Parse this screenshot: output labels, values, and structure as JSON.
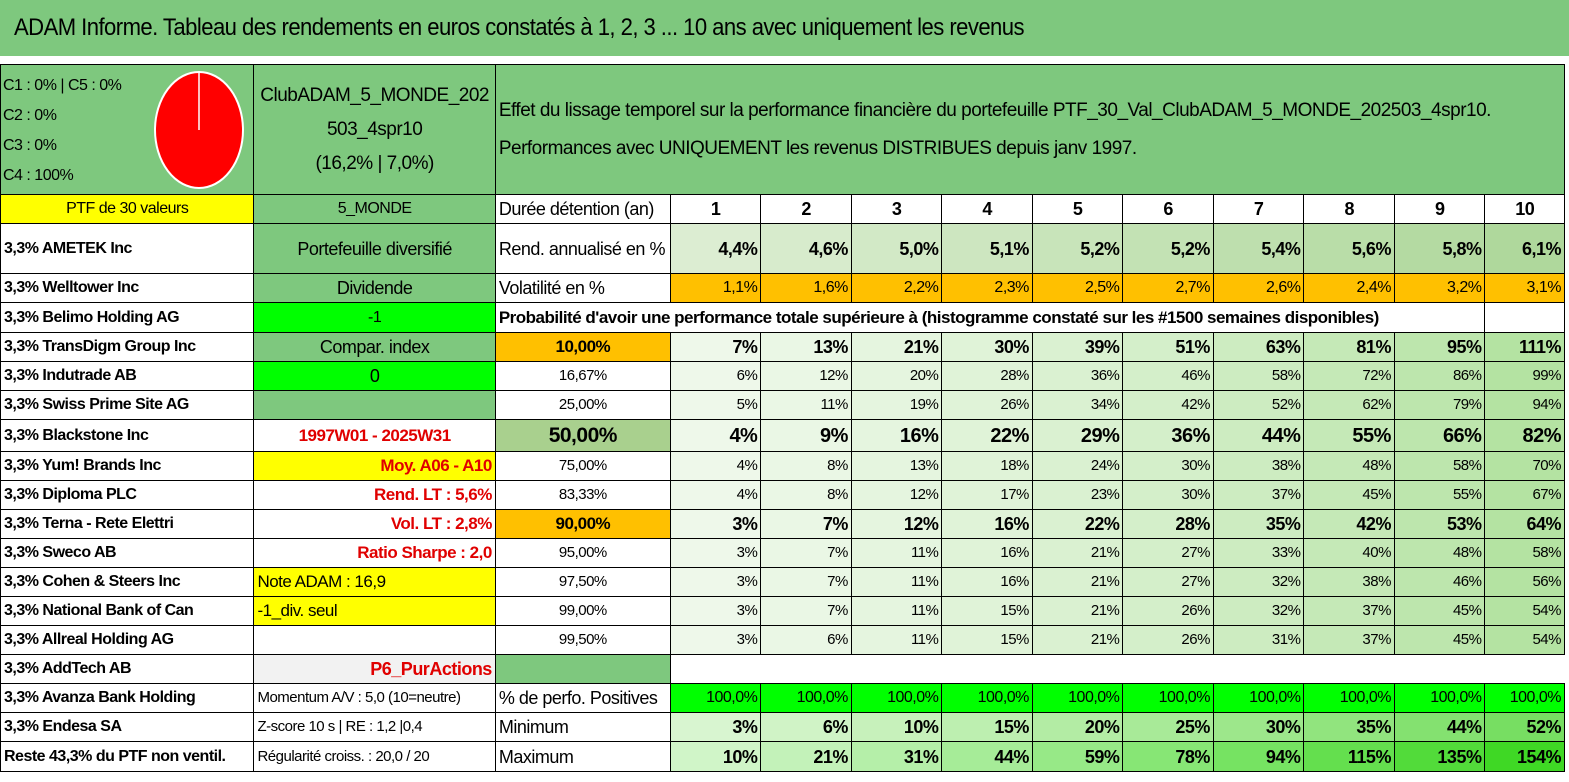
{
  "title": "ADAM Informe. Tableau des rendements en euros constatés à 1, 2, 3 ... 10 ans avec uniquement les revenus",
  "pie": {
    "lines": [
      "C1 : 0% | C5 : 0%",
      "C2 : 0%",
      "C3 : 0%",
      "C4 : 100%"
    ],
    "color": "#ff0000",
    "values": {
      "C1": 0,
      "C2": 0,
      "C3": 0,
      "C4": 100,
      "C5": 0
    }
  },
  "portfolio_name": [
    "ClubADAM_5_MONDE_202",
    "503_4spr10",
    "(16,2% | 7,0%)"
  ],
  "description": [
    "Effet du lissage temporel sur la performance financière du portefeuille PTF_30_Val_ClubADAM_5_MONDE_202503_4spr10.",
    "Performances avec UNIQUEMENT les revenus DISTRIBUES depuis janv 1997."
  ],
  "ptf_header": "PTF de 30 valeurs",
  "ptf_code": "5_MONDE",
  "holdings": [
    "3,3% AMETEK Inc",
    "3,3% Welltower Inc",
    "3,3% Belimo Holding AG",
    "3,3% TransDigm Group Inc",
    "3,3% Indutrade AB",
    "3,3% Swiss Prime Site AG",
    "3,3% Blackstone Inc",
    "3,3% Yum! Brands Inc",
    "3,3% Diploma PLC",
    "3,3% Terna - Rete Elettri",
    "3,3% Sweco AB",
    "3,3% Cohen & Steers Inc",
    "3,3% National Bank of Can",
    "3,3% Allreal Holding AG",
    "3,3% AddTech AB",
    "3,3% Avanza Bank Holding",
    "3,3% Endesa SA",
    "Reste 43,3% du PTF non ventil."
  ],
  "info": {
    "diversified": "Portefeuille diversifié",
    "dividend": "Dividende",
    "dividend_value": "-1",
    "compar_index": "Compar. index",
    "compar_value": "0",
    "period": "1997W01 - 2025W31",
    "moy": "Moy. A06 - A10",
    "rend_lt": "Rend. LT : 5,6%",
    "vol_lt": "Vol. LT : 2,8%",
    "sharpe": "Ratio Sharpe : 2,0",
    "note": "Note ADAM : 16,9",
    "div_seul": "-1_div. seul",
    "p6": "P6_PurActions",
    "momentum": "Momentum A/V : 5,0 (10=neutre)",
    "zscore": "Z-score 10 s | RE : 1,2 |0,4",
    "regularite": "Régularité croiss. : 20,0 / 20"
  },
  "labels": {
    "duree": "Durée détention (an)",
    "rend": "Rend. annualisé en %",
    "vol": "Volatilité en %",
    "proba": "Probabilité d'avoir une performance totale supérieure à (histogramme constaté sur les #1500 semaines disponibles)",
    "positives": "% de perfo. Positives",
    "minimum": "Minimum",
    "maximum": "Maximum"
  },
  "years": [
    "1",
    "2",
    "3",
    "4",
    "5",
    "6",
    "7",
    "8",
    "9",
    "10"
  ],
  "rend": [
    "4,4%",
    "4,6%",
    "5,0%",
    "5,1%",
    "5,2%",
    "5,2%",
    "5,4%",
    "5,6%",
    "5,8%",
    "6,1%"
  ],
  "vol": [
    "1,1%",
    "1,6%",
    "2,2%",
    "2,3%",
    "2,5%",
    "2,7%",
    "2,6%",
    "2,4%",
    "3,2%",
    "3,1%"
  ],
  "prob_rows": [
    {
      "p": "10,00%",
      "v": [
        "7%",
        "13%",
        "21%",
        "30%",
        "39%",
        "51%",
        "63%",
        "81%",
        "95%",
        "111%"
      ]
    },
    {
      "p": "16,67%",
      "v": [
        "6%",
        "12%",
        "20%",
        "28%",
        "36%",
        "46%",
        "58%",
        "72%",
        "86%",
        "99%"
      ]
    },
    {
      "p": "25,00%",
      "v": [
        "5%",
        "11%",
        "19%",
        "26%",
        "34%",
        "42%",
        "52%",
        "62%",
        "79%",
        "94%"
      ]
    },
    {
      "p": "50,00%",
      "v": [
        "4%",
        "9%",
        "16%",
        "22%",
        "29%",
        "36%",
        "44%",
        "55%",
        "66%",
        "82%"
      ]
    },
    {
      "p": "75,00%",
      "v": [
        "4%",
        "8%",
        "13%",
        "18%",
        "24%",
        "30%",
        "38%",
        "48%",
        "58%",
        "70%"
      ]
    },
    {
      "p": "83,33%",
      "v": [
        "4%",
        "8%",
        "12%",
        "17%",
        "23%",
        "30%",
        "37%",
        "45%",
        "55%",
        "67%"
      ]
    },
    {
      "p": "90,00%",
      "v": [
        "3%",
        "7%",
        "12%",
        "16%",
        "22%",
        "28%",
        "35%",
        "42%",
        "53%",
        "64%"
      ]
    },
    {
      "p": "95,00%",
      "v": [
        "3%",
        "7%",
        "11%",
        "16%",
        "21%",
        "27%",
        "33%",
        "40%",
        "48%",
        "58%"
      ]
    },
    {
      "p": "97,50%",
      "v": [
        "3%",
        "7%",
        "11%",
        "16%",
        "21%",
        "27%",
        "32%",
        "38%",
        "46%",
        "56%"
      ]
    },
    {
      "p": "99,00%",
      "v": [
        "3%",
        "7%",
        "11%",
        "15%",
        "21%",
        "26%",
        "32%",
        "37%",
        "45%",
        "54%"
      ]
    },
    {
      "p": "99,50%",
      "v": [
        "3%",
        "6%",
        "11%",
        "15%",
        "21%",
        "26%",
        "31%",
        "37%",
        "45%",
        "54%"
      ]
    }
  ],
  "positives": [
    "100,0%",
    "100,0%",
    "100,0%",
    "100,0%",
    "100,0%",
    "100,0%",
    "100,0%",
    "100,0%",
    "100,0%",
    "100,0%"
  ],
  "minimum": [
    "3%",
    "6%",
    "10%",
    "15%",
    "20%",
    "25%",
    "30%",
    "35%",
    "44%",
    "52%"
  ],
  "maximum": [
    "10%",
    "21%",
    "31%",
    "44%",
    "59%",
    "78%",
    "94%",
    "115%",
    "135%",
    "154%"
  ],
  "colors": {
    "green": "#7ec87e",
    "yellow": "#ffff00",
    "orange": "#ffc000",
    "bright_green": "#00ff00",
    "red_text": "#e00000"
  }
}
